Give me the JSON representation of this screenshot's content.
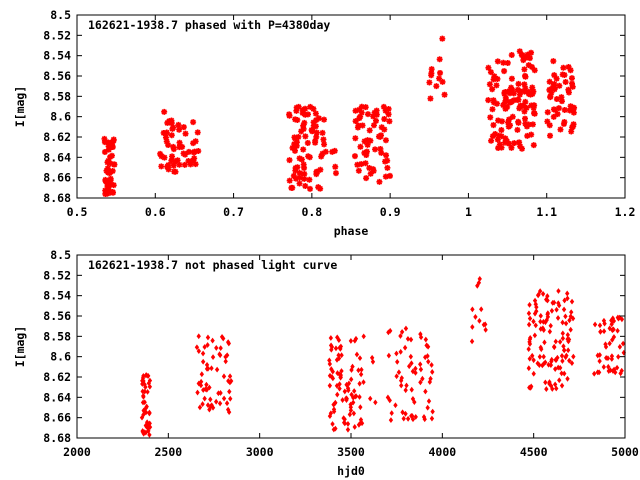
{
  "chart_data": [
    {
      "type": "scatter",
      "title": "162621-1938.7 phased with P=4380day",
      "xlabel": "phase",
      "ylabel": "I[mag]",
      "xlim": [
        0.5,
        1.2
      ],
      "ylim": [
        8.68,
        8.5
      ],
      "y_inverted": true,
      "xticks": [
        "0.5",
        "0.6",
        "0.7",
        "0.8",
        "0.9",
        "1",
        "1.1",
        "1.2"
      ],
      "yticks": [
        "8.5",
        "8.52",
        "8.54",
        "8.56",
        "8.58",
        "8.6",
        "8.62",
        "8.64",
        "8.66",
        "8.68"
      ],
      "grid": false,
      "marker": "star",
      "color": "#ff0000",
      "clusters": [
        {
          "x_range": [
            0.535,
            0.548
          ],
          "y_range": [
            8.617,
            8.677
          ],
          "count": 45
        },
        {
          "x_range": [
            0.605,
            0.655
          ],
          "y_range": [
            8.595,
            8.655
          ],
          "count": 55
        },
        {
          "x_range": [
            0.77,
            0.82
          ],
          "y_range": [
            8.59,
            8.672
          ],
          "count": 80
        },
        {
          "x_range": [
            0.825,
            0.835
          ],
          "y_range": [
            8.6,
            8.66
          ],
          "count": 4
        },
        {
          "x_range": [
            0.855,
            0.9
          ],
          "y_range": [
            8.59,
            8.665
          ],
          "count": 60
        },
        {
          "x_range": [
            0.948,
            0.97
          ],
          "y_range": [
            8.52,
            8.585
          ],
          "count": 12
        },
        {
          "x_range": [
            1.025,
            1.085
          ],
          "y_range": [
            8.535,
            8.632
          ],
          "count": 120
        },
        {
          "x_range": [
            1.1,
            1.135
          ],
          "y_range": [
            8.545,
            8.62
          ],
          "count": 50
        }
      ]
    },
    {
      "type": "scatter",
      "title": "162621-1938.7 not phased light curve",
      "xlabel": "hjd0",
      "ylabel": "I[mag]",
      "xlim": [
        2000,
        5000
      ],
      "ylim": [
        8.68,
        8.5
      ],
      "y_inverted": true,
      "xticks": [
        "2000",
        "2500",
        "3000",
        "3500",
        "4000",
        "4500",
        "5000"
      ],
      "yticks": [
        "8.5",
        "8.52",
        "8.54",
        "8.56",
        "8.58",
        "8.6",
        "8.62",
        "8.64",
        "8.66",
        "8.68"
      ],
      "grid": false,
      "marker": "diamond",
      "color": "#ff0000",
      "clusters": [
        {
          "x_range": [
            2355,
            2400
          ],
          "y_range": [
            8.617,
            8.677
          ],
          "count": 45
        },
        {
          "x_range": [
            2655,
            2850
          ],
          "y_range": [
            8.578,
            8.655
          ],
          "count": 60
        },
        {
          "x_range": [
            3380,
            3570
          ],
          "y_range": [
            8.58,
            8.672
          ],
          "count": 90
        },
        {
          "x_range": [
            3600,
            3650
          ],
          "y_range": [
            8.6,
            8.65
          ],
          "count": 4
        },
        {
          "x_range": [
            3700,
            3950
          ],
          "y_range": [
            8.572,
            8.665
          ],
          "count": 65
        },
        {
          "x_range": [
            4160,
            4240
          ],
          "y_range": [
            8.52,
            8.585
          ],
          "count": 12
        },
        {
          "x_range": [
            4470,
            4720
          ],
          "y_range": [
            8.535,
            8.632
          ],
          "count": 120
        },
        {
          "x_range": [
            4830,
            5000
          ],
          "y_range": [
            8.56,
            8.62
          ],
          "count": 50
        }
      ]
    }
  ]
}
